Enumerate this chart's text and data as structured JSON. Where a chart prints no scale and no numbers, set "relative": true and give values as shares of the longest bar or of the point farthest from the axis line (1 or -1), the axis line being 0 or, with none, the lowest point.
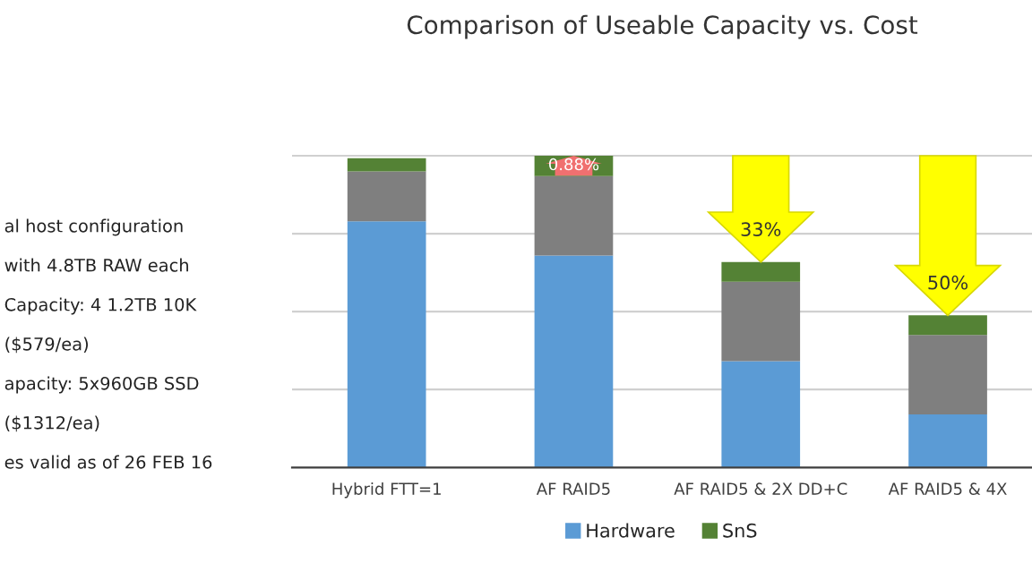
{
  "chart_data": {
    "type": "bar",
    "title": "Comparison of Useable Capacity vs. Cost",
    "categories": [
      "Hybrid FTT=1",
      "AF RAID5",
      "AF RAID5 & 2X DD+C",
      "AF RAID5 & 4X"
    ],
    "relative": true,
    "stacked": true,
    "grid": "y",
    "legend": "bottom",
    "series": [
      {
        "name": "Hardware",
        "color": "#5b9bd5",
        "values": [
          0.79,
          0.68,
          0.341,
          0.17
        ]
      },
      {
        "color": "#7f7f7f",
        "values": [
          0.16,
          0.255,
          0.255,
          0.255
        ]
      },
      {
        "name": "SnS",
        "color": "#548235",
        "values": [
          0.042,
          0.065,
          0.063,
          0.063
        ]
      }
    ],
    "annotations": [
      {
        "text": "0.88%",
        "x": "AF RAID5",
        "y": 0.968
      },
      {
        "text": "33%",
        "x": "AF RAID5 & 2X DD+C",
        "y": 0.659
      },
      {
        "text": "50%",
        "x": "AF RAID5 & 4X",
        "y": 0.488
      },
      "al host configuration",
      "with 4.8TB RAW each",
      "Capacity: 4 1.2TB 10K",
      "($579/ea)",
      "apacity: 5x960GB SSD",
      "($1312/ea)",
      "es valid as of 26 FEB 16"
    ]
  }
}
